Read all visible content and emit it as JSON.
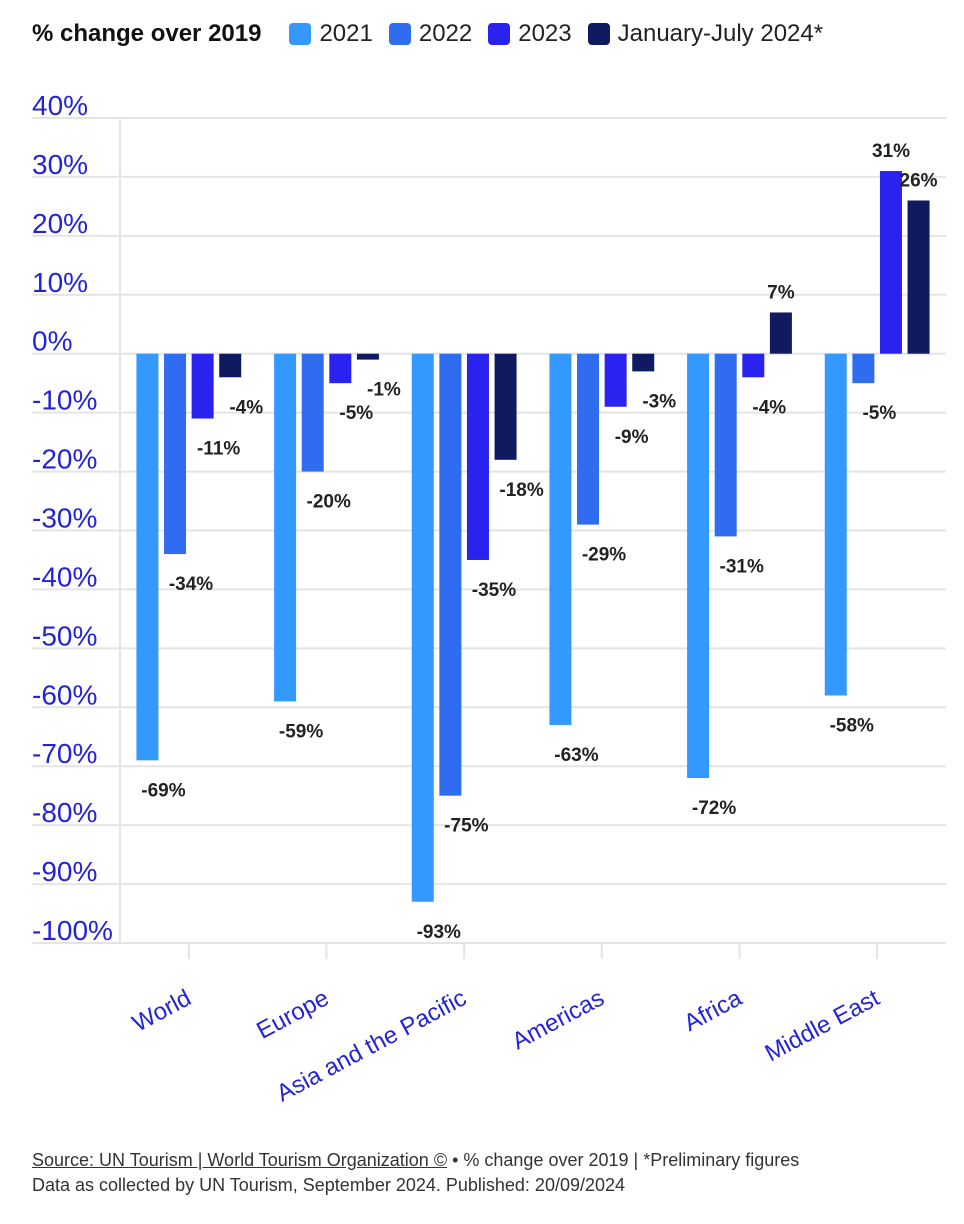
{
  "legend": {
    "title": "% change over 2019"
  },
  "chart_data": {
    "type": "bar",
    "title": "% change over 2019",
    "categories": [
      "World",
      "Europe",
      "Asia and the Pacific",
      "Americas",
      "Africa",
      "Middle East"
    ],
    "series": [
      {
        "name": "2021",
        "color": "#3399ff",
        "values": [
          -69,
          -59,
          -93,
          -63,
          -72,
          -58
        ],
        "labels": [
          "-69%",
          "-59%",
          "-93%",
          "-63%",
          "-72%",
          "-58%"
        ]
      },
      {
        "name": "2022",
        "color": "#2f6cf0",
        "values": [
          -34,
          -20,
          -75,
          -29,
          -31,
          -5
        ],
        "labels": [
          "-34%",
          "-20%",
          "-75%",
          "-29%",
          "-31%",
          "-5%"
        ]
      },
      {
        "name": "2023",
        "color": "#2a22ee",
        "values": [
          -11,
          -5,
          -35,
          -9,
          -4,
          31
        ],
        "labels": [
          "-11%",
          "-5%",
          "-35%",
          "-9%",
          "-4%",
          "31%"
        ]
      },
      {
        "name": "January-July 2024*",
        "color": "#0f1a60",
        "values": [
          -4,
          -1,
          -18,
          -3,
          7,
          26
        ],
        "labels": [
          "-4%",
          "-1%",
          "-18%",
          "-3%",
          "7%",
          "26%"
        ]
      }
    ],
    "ylim": [
      -100,
      40
    ],
    "yticks": [
      40,
      30,
      20,
      10,
      0,
      -10,
      -20,
      -30,
      -40,
      -50,
      -60,
      -70,
      -80,
      -90,
      -100
    ],
    "ytick_labels": [
      "40%",
      "30%",
      "20%",
      "10%",
      "0%",
      "-10%",
      "-20%",
      "-30%",
      "-40%",
      "-50%",
      "-60%",
      "-70%",
      "-80%",
      "-90%",
      "-100%"
    ],
    "xlabel": "",
    "ylabel": "",
    "grid": true,
    "legend_position": "top",
    "tick_label_color": "#2323d9",
    "grid_color": "#e4e4e4"
  },
  "footer": {
    "source_link": "Source: UN Tourism | World Tourism Organization ©",
    "note": " • % change over 2019 | *Preliminary figures",
    "line2": "Data as collected by UN Tourism, September 2024. Published: 20/09/2024"
  }
}
